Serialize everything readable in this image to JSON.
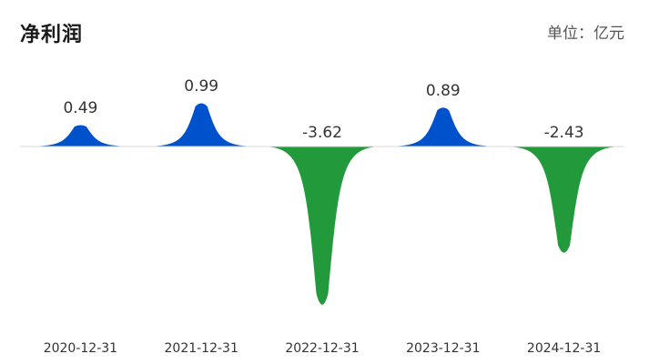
{
  "header": {
    "title": "净利润",
    "unit": "单位：亿元"
  },
  "colors": {
    "positive": "#0052CC",
    "negative": "#229A3C",
    "text": "#333333"
  },
  "chart_data": {
    "type": "area",
    "title": "净利润",
    "unit": "亿元",
    "categories": [
      "2020-12-31",
      "2021-12-31",
      "2022-12-31",
      "2023-12-31",
      "2024-12-31"
    ],
    "values": [
      0.49,
      0.99,
      -3.62,
      0.89,
      -2.43
    ],
    "value_labels": [
      "0.49",
      "0.99",
      "-3.62",
      "0.89",
      "-2.43"
    ],
    "grid": false,
    "legend": "none"
  }
}
